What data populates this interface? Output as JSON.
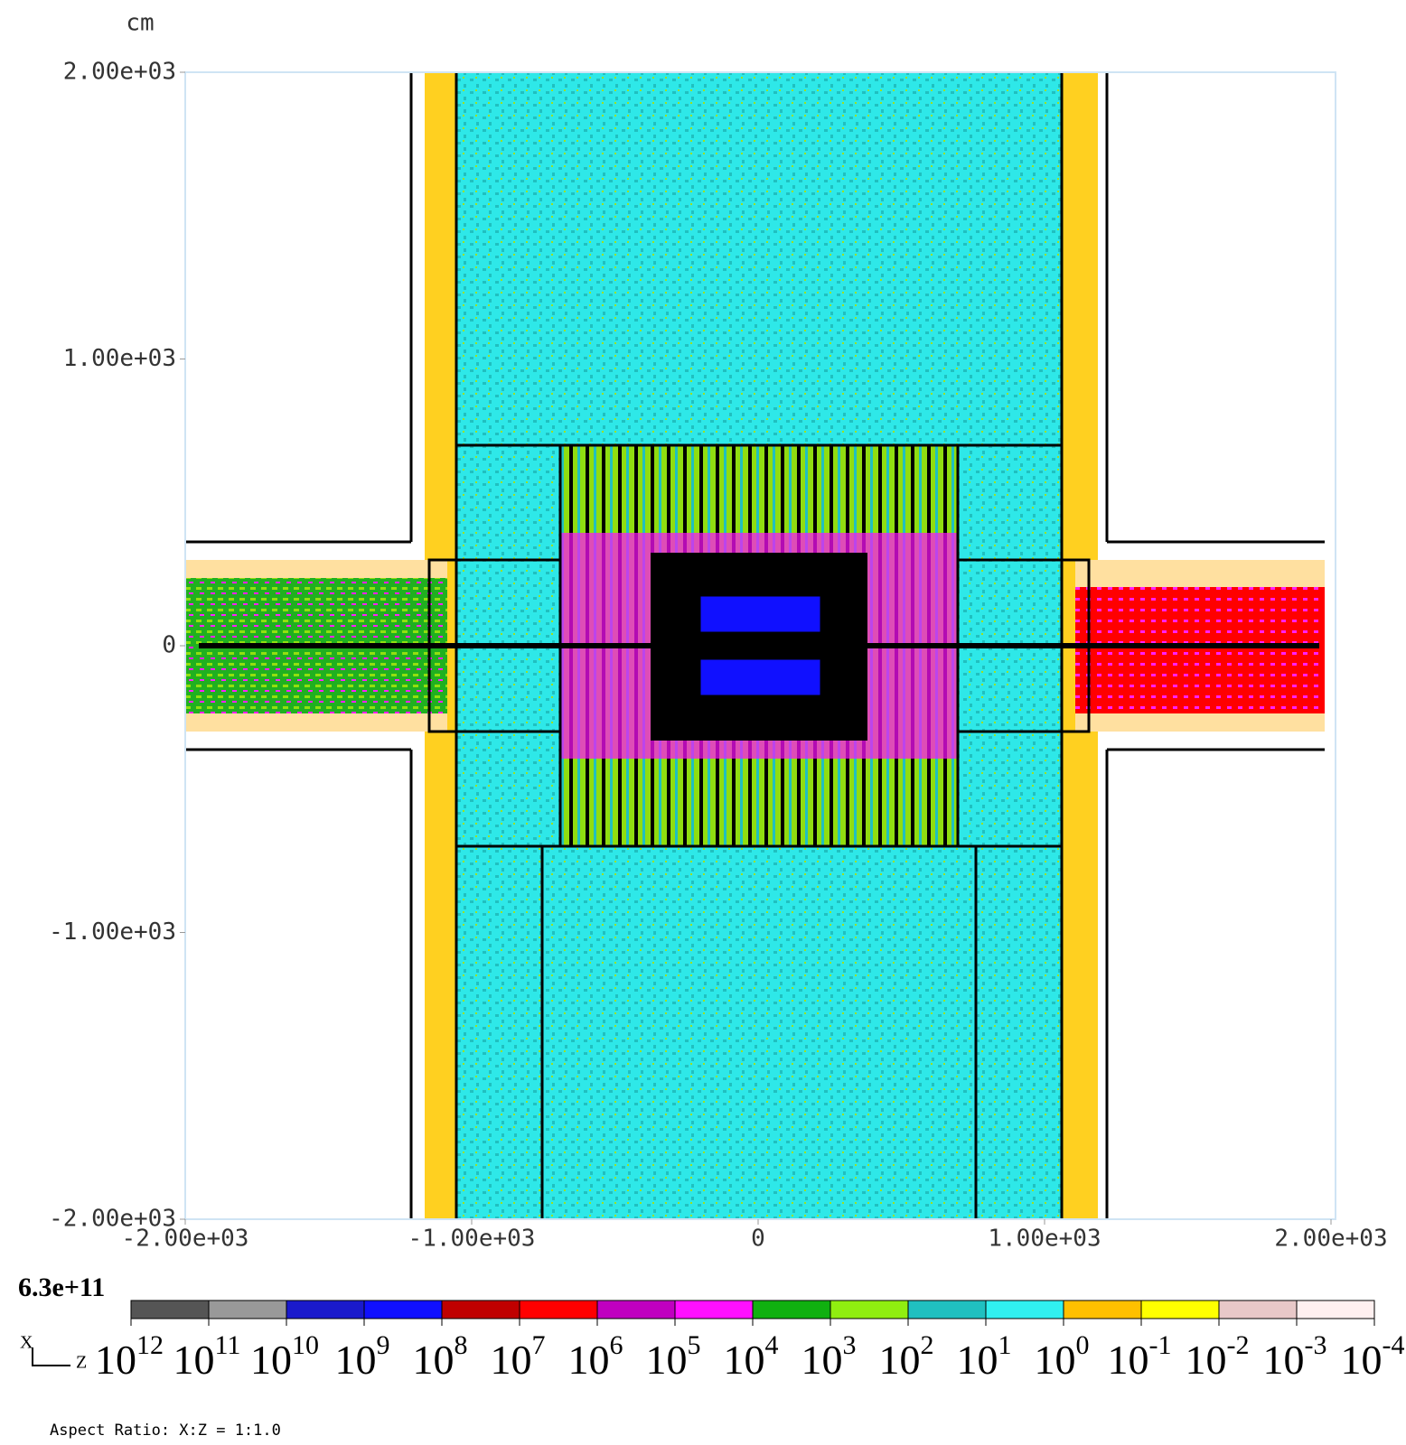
{
  "chart_data": {
    "type": "heatmap",
    "y_label": "cm",
    "xlim": [
      -2000,
      2000
    ],
    "ylim": [
      -2000,
      2000
    ],
    "xticks": [
      {
        "value": -2000,
        "label": "-2.00e+03"
      },
      {
        "value": -1000,
        "label": "-1.00e+03"
      },
      0,
      {
        "value": 1000,
        "label": "1.00e+03"
      },
      {
        "value": 2000,
        "label": "2.00e+03"
      }
    ],
    "yticks": [
      {
        "value": 2000,
        "label": "2.00e+03"
      },
      {
        "value": 1000,
        "label": "1.00e+03"
      },
      0,
      {
        "value": -1000,
        "label": "-1.00e+03"
      },
      {
        "value": -2000,
        "label": "-2.00e+03"
      }
    ],
    "colorbar": {
      "max_label": "6.3e+11",
      "base": "10",
      "exponents": [
        12,
        11,
        10,
        9,
        8,
        7,
        6,
        5,
        4,
        3,
        2,
        1,
        0,
        -1,
        -2,
        -3,
        -4
      ],
      "colors": [
        "#555555",
        "#999999",
        "#1a1acc",
        "#1010ff",
        "#c00000",
        "#ff0000",
        "#c000c0",
        "#ff10ff",
        "#10b010",
        "#90ee10",
        "#20c0c0",
        "#30f0f0",
        "#ffc000",
        "#ffff00",
        "#e8c8c8",
        "#fff0f0"
      ]
    },
    "axis_indicator": [
      "X",
      "Z"
    ],
    "aspect_ratio": "Aspect Ratio: X:Z = 1:1.0"
  }
}
